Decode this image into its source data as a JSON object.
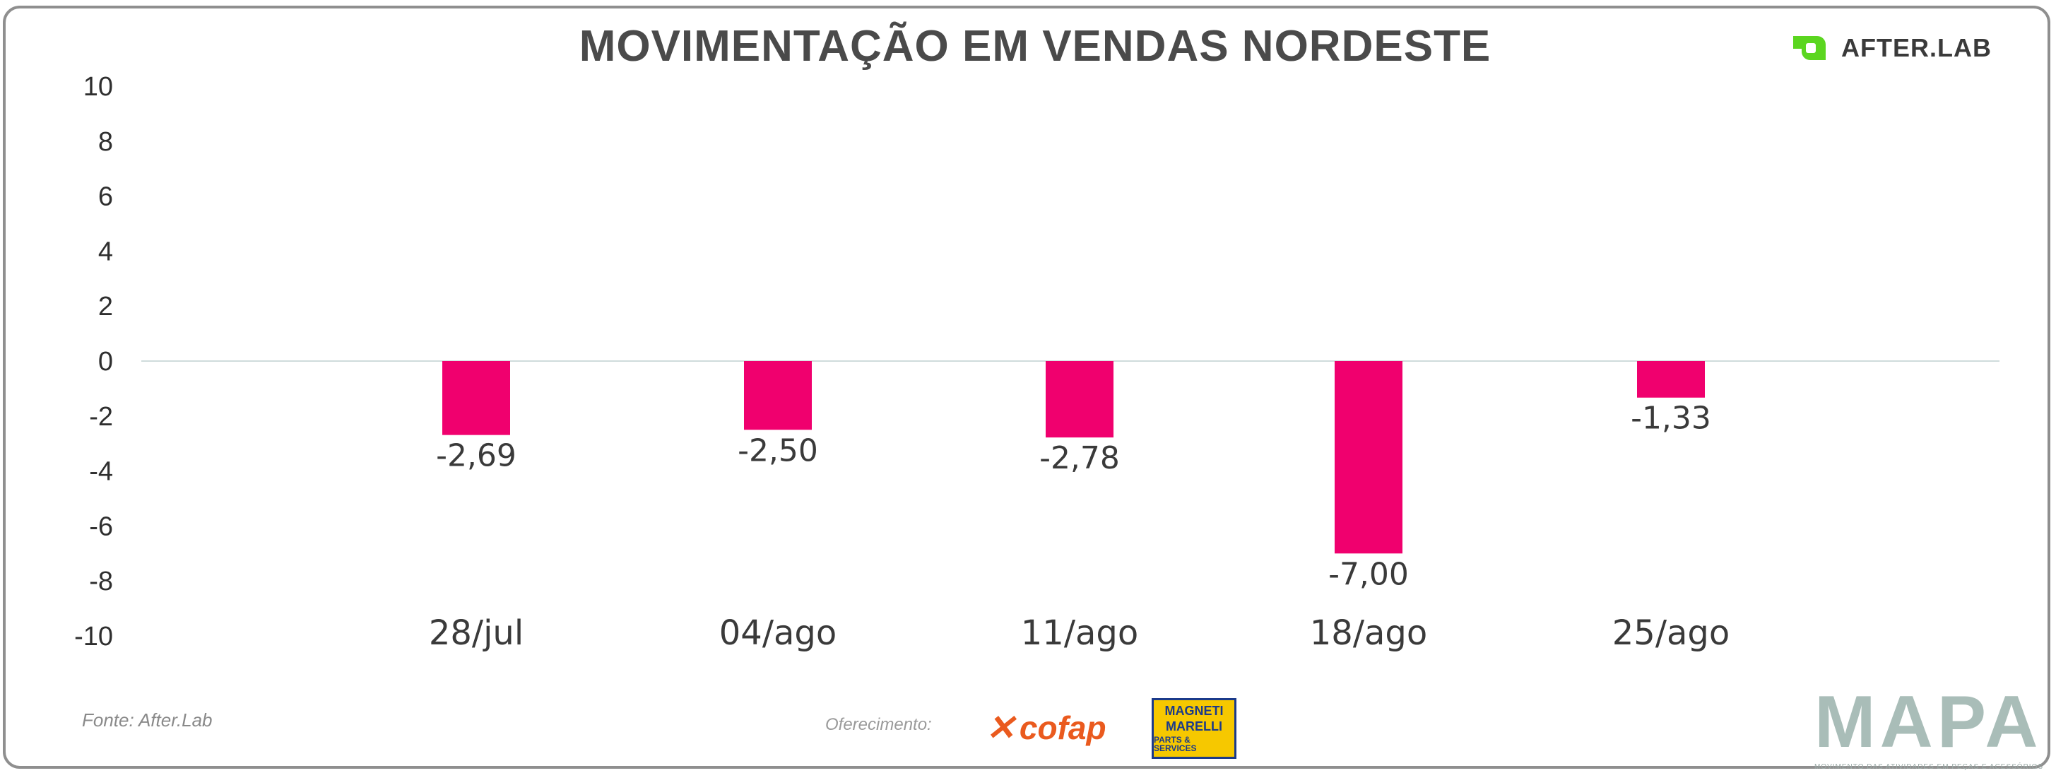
{
  "title": "MOVIMENTAÇÃO EM VENDAS NORDESTE",
  "logo": {
    "text": "AFTER.LAB",
    "icon": "afterlab-mark-icon",
    "color": "#5bd620"
  },
  "footer": {
    "source": "Fonte: After.Lab",
    "sponsor_label": "Oferecimento:",
    "sponsor_cofap": "cofap",
    "sponsor_magneti_top": "MAGNETI",
    "sponsor_magneti_bottom": "MARELLI",
    "sponsor_magneti_tag": "PARTS & SERVICES",
    "mapa": "MAPA",
    "mapa_tagline": "MOVIMENTO DAS ATIVIDADES EM PEÇAS E ACESSÓRIOS"
  },
  "colors": {
    "bar": "#f0006e",
    "zero_line": "#cfdcdc",
    "cofap": "#ea5a1e",
    "magneti_bg": "#f6c800",
    "magneti_text": "#1b3a8a",
    "mapa": "#a9bdb8"
  },
  "chart_data": {
    "type": "bar",
    "title": "MOVIMENTAÇÃO EM VENDAS NORDESTE",
    "categories": [
      "28/jul",
      "04/ago",
      "11/ago",
      "18/ago",
      "25/ago"
    ],
    "values": [
      -2.69,
      -2.5,
      -2.78,
      -7.0,
      -1.33
    ],
    "data_labels": [
      "-2,69",
      "-2,50",
      "-2,78",
      "-7,00",
      "-1,33"
    ],
    "ylim": [
      -10,
      10
    ],
    "y_ticks": [
      10,
      8,
      6,
      4,
      2,
      0,
      -2,
      -4,
      -6,
      -8,
      -10
    ],
    "y_tick_labels": [
      "10",
      "8",
      "6",
      "4",
      "2",
      "0",
      "-2",
      "-4",
      "-6",
      "-8",
      "-10"
    ],
    "xlabel": "",
    "ylabel": "",
    "grid": false,
    "legend": "none"
  }
}
